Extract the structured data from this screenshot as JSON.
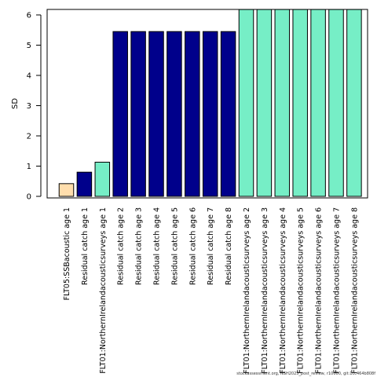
{
  "chart_data": {
    "type": "bar",
    "ylabel": "SD",
    "ylim": [
      0,
      6.2
    ],
    "y_ticks": [
      0,
      1,
      2,
      3,
      4,
      5,
      6
    ],
    "grid": false,
    "categories": [
      "FLT05:SSBacoustic age 1",
      "Residual catch age 1",
      "FLT01:NorthernIrelandacousticsurveys age 1",
      "Residual catch age 2",
      "Residual catch age 3",
      "Residual catch age 4",
      "Residual catch age 5",
      "Residual catch age 6",
      "Residual catch age 7",
      "Residual catch age 8",
      "FLT01:NorthernIrelandacousticsurveys age 2",
      "FLT01:NorthernIrelandacousticsurveys age 3",
      "FLT01:NorthernIrelandacousticsurveys age 4",
      "FLT01:NorthernIrelandacousticsurveys age 5",
      "FLT01:NorthernIrelandacousticsurveys age 6",
      "FLT01:NorthernIrelandacousticsurveys age 7",
      "FLT01:NorthernIrelandacousticsurveys age 8"
    ],
    "values": [
      0.42,
      0.8,
      1.13,
      5.45,
      5.45,
      5.45,
      5.45,
      5.45,
      5.45,
      5.45,
      6.18,
      6.18,
      6.18,
      6.18,
      6.18,
      6.18,
      6.18
    ],
    "bar_colors": [
      "#ffdead",
      "#00008b",
      "#76eec6",
      "#00008b",
      "#00008b",
      "#00008b",
      "#00008b",
      "#00008b",
      "#00008b",
      "#00008b",
      "#76eec6",
      "#76eec6",
      "#76eec6",
      "#76eec6",
      "#76eec6",
      "#76eec6",
      "#76eec6"
    ]
  },
  "footnote": "stockassessment.org, NSH2025_post_review, r10000, git:1cc464b808f"
}
